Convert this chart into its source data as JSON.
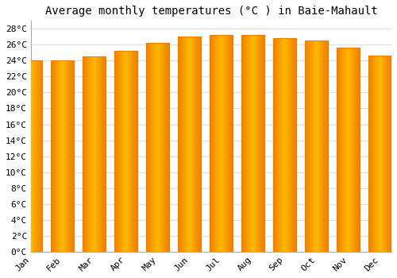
{
  "title": "Average monthly temperatures (°C ) in Baie-Mahault",
  "months": [
    "Jan",
    "Feb",
    "Mar",
    "Apr",
    "May",
    "Jun",
    "Jul",
    "Aug",
    "Sep",
    "Oct",
    "Nov",
    "Dec"
  ],
  "temperatures": [
    24.0,
    24.0,
    24.5,
    25.2,
    26.2,
    27.0,
    27.2,
    27.2,
    26.8,
    26.5,
    25.6,
    24.6
  ],
  "bar_color_mid": "#FFB800",
  "bar_color_edge": "#F08000",
  "background_color": "#ffffff",
  "grid_color": "#dddddd",
  "ylim": [
    0,
    29
  ],
  "ytick_step": 2,
  "title_fontsize": 10,
  "tick_fontsize": 8,
  "font_family": "monospace",
  "bar_width": 0.72
}
